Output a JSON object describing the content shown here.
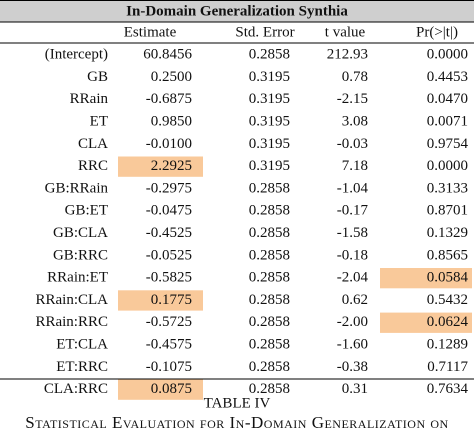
{
  "table": {
    "title": "In-Domain Generalization Synthia",
    "header": [
      "Estimate",
      "Std. Error",
      "t value",
      "Pr(>|t|)"
    ],
    "rows": [
      [
        "(Intercept)",
        "60.8456",
        "0.2858",
        "212.93",
        "0.0000"
      ],
      [
        "GB",
        "0.2500",
        "0.3195",
        "0.78",
        "0.4453"
      ],
      [
        "RRain",
        "-0.6875",
        "0.3195",
        "-2.15",
        "0.0470"
      ],
      [
        "ET",
        "0.9850",
        "0.3195",
        "3.08",
        "0.0071"
      ],
      [
        "CLA",
        "-0.0100",
        "0.3195",
        "-0.03",
        "0.9754"
      ],
      [
        "RRC",
        "2.2925",
        "0.3195",
        "7.18",
        "0.0000"
      ],
      [
        "GB:RRain",
        "-0.2975",
        "0.2858",
        "-1.04",
        "0.3133"
      ],
      [
        "GB:ET",
        "-0.0475",
        "0.2858",
        "-0.17",
        "0.8701"
      ],
      [
        "GB:CLA",
        "-0.4525",
        "0.2858",
        "-1.58",
        "0.1329"
      ],
      [
        "GB:RRC",
        "-0.0525",
        "0.2858",
        "-0.18",
        "0.8565"
      ],
      [
        "RRain:ET",
        "-0.5825",
        "0.2858",
        "-2.04",
        "0.0584"
      ],
      [
        "RRain:CLA",
        "0.1775",
        "0.2858",
        "0.62",
        "0.5432"
      ],
      [
        "RRain:RRC",
        "-0.5725",
        "0.2858",
        "-2.00",
        "0.0624"
      ],
      [
        "ET:CLA",
        "-0.4575",
        "0.2858",
        "-1.60",
        "0.1289"
      ],
      [
        "ET:RRC",
        "-0.1075",
        "0.2858",
        "-0.38",
        "0.7117"
      ],
      [
        "CLA:RRC",
        "0.0875",
        "0.2858",
        "0.31",
        "0.7634"
      ]
    ],
    "highlighted": [
      [
        5,
        1
      ],
      [
        10,
        4
      ],
      [
        11,
        1
      ],
      [
        12,
        4
      ],
      [
        15,
        1
      ]
    ],
    "highlight_color": "#f9c99a"
  },
  "caption": {
    "label": "TABLE IV",
    "text": "Statistical Evaluation for In-Domain Generalization on"
  }
}
